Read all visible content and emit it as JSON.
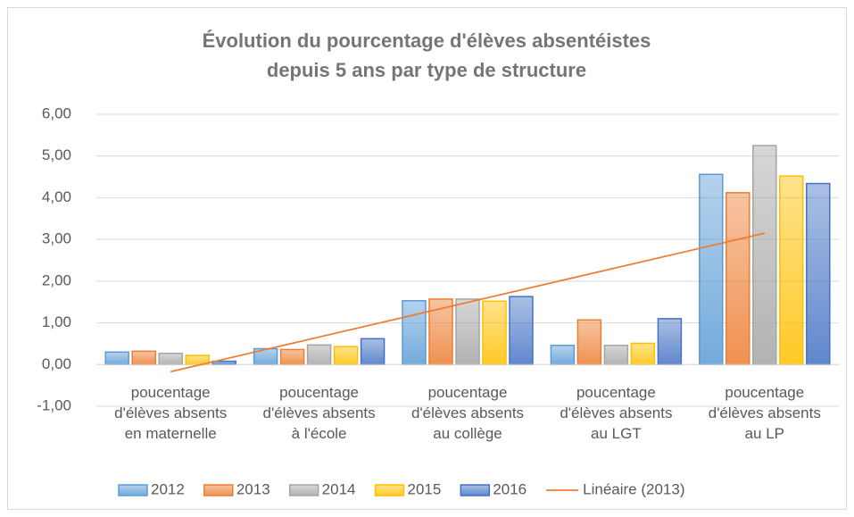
{
  "chart_data": {
    "type": "bar",
    "title": "Évolution du pourcentage d'élèves absentéistes\ndepuis 5 ans par type de structure",
    "categories": [
      "poucentage\nd'élèves absents\nen maternelle",
      "poucentage\nd'élèves absents\nà l'école",
      "poucentage\nd'élèves absents\nau collège",
      "poucentage\nd'élèves absents\nau LGT",
      "poucentage\nd'élèves absents\nau LP"
    ],
    "series": [
      {
        "name": "2012",
        "color": "#5b9bd5",
        "values": [
          0.3,
          0.38,
          1.53,
          0.46,
          4.56
        ]
      },
      {
        "name": "2013",
        "color": "#ed7d31",
        "values": [
          0.32,
          0.36,
          1.57,
          1.07,
          4.12
        ]
      },
      {
        "name": "2014",
        "color": "#a5a5a5",
        "values": [
          0.27,
          0.47,
          1.57,
          0.46,
          5.25
        ]
      },
      {
        "name": "2015",
        "color": "#ffc000",
        "values": [
          0.22,
          0.43,
          1.52,
          0.51,
          4.52
        ]
      },
      {
        "name": "2016",
        "color": "#4472c4",
        "values": [
          0.08,
          0.62,
          1.63,
          1.1,
          4.34
        ]
      }
    ],
    "trendline": {
      "name": "Linéaire (2013)",
      "color": "#ed7d31",
      "values": [
        -0.17,
        3.15
      ]
    },
    "ylim": [
      -1,
      6
    ],
    "yticks": [
      {
        "value": -1,
        "label": "-1,00"
      },
      {
        "value": 0,
        "label": "0,00"
      },
      {
        "value": 1,
        "label": "1,00"
      },
      {
        "value": 2,
        "label": "2,00"
      },
      {
        "value": 3,
        "label": "3,00"
      },
      {
        "value": 4,
        "label": "4,00"
      },
      {
        "value": 5,
        "label": "5,00"
      },
      {
        "value": 6,
        "label": "6,00"
      }
    ],
    "grid": true,
    "legend": "bottom"
  }
}
